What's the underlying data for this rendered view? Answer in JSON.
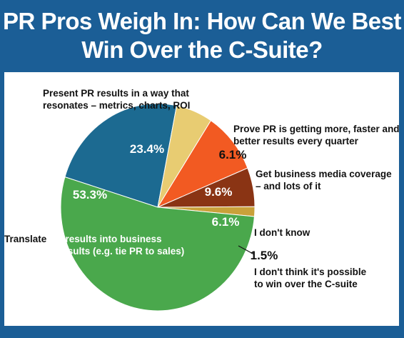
{
  "title_line1": "PR Pros Weigh In: How Can We Best",
  "title_line2": "Win Over the C-Suite?",
  "chart_data": {
    "type": "pie",
    "title": "PR Pros Weigh In: How Can We Best Win Over the C-Suite?",
    "slices": [
      {
        "label_lines": [
          "Present PR results in a way that",
          "resonates – metrics, charts, ROI"
        ],
        "value": 23.4,
        "value_label": "23.4%",
        "color": "#1c6a91"
      },
      {
        "label_lines": [
          "Prove PR is getting more, faster and",
          "better results every quarter"
        ],
        "value": 6.1,
        "value_label": "6.1%",
        "color": "#e8cc72"
      },
      {
        "label_lines": [
          "Get business media coverage",
          "– and lots of it"
        ],
        "value": 9.6,
        "value_label": "9.6%",
        "color": "#f25a22"
      },
      {
        "label_lines": [
          "I don't know"
        ],
        "value": 6.1,
        "value_label": "6.1%",
        "color": "#8a3414"
      },
      {
        "label_lines": [
          "I don't think it's possible",
          "to win over the C-suite"
        ],
        "value": 1.5,
        "value_label": "1.5%",
        "color": "#c9a13a"
      },
      {
        "label_lines": [
          "Translate PR results into business",
          "results (e.g. tie PR to sales)"
        ],
        "value": 53.3,
        "value_label": "53.3%",
        "color": "#4aa84c"
      }
    ]
  }
}
